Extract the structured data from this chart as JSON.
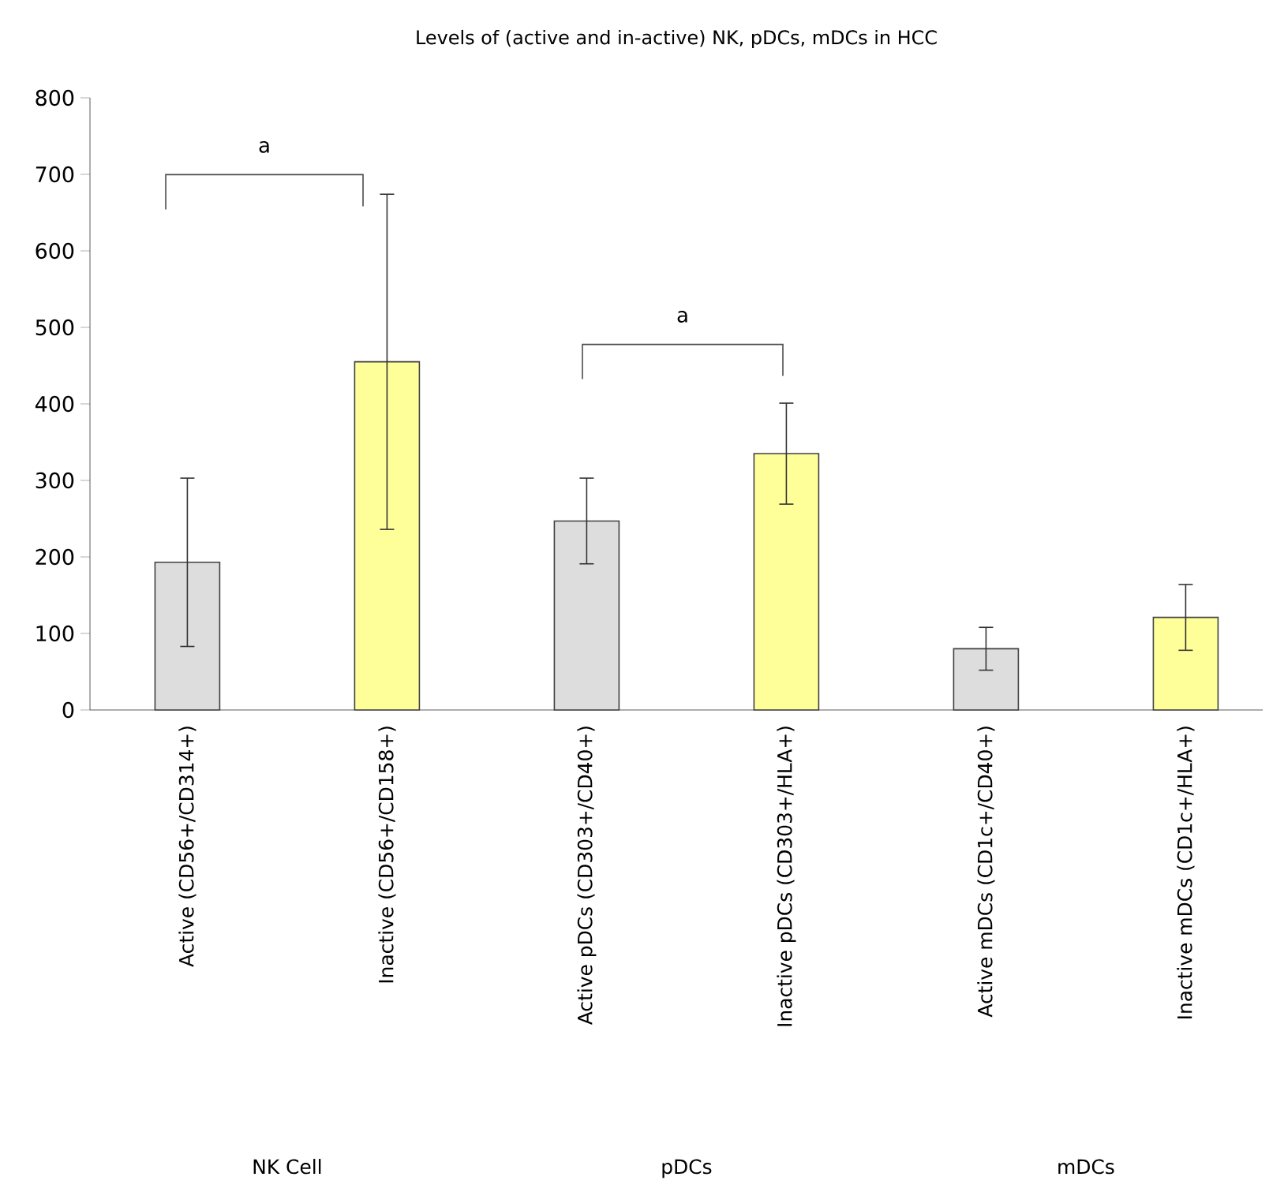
{
  "chart_data": {
    "type": "bar",
    "title": "Levels of (active and in-active) NK, pDCs, mDCs in HCC",
    "categories": [
      "Active (CD56+/CD314+)",
      "Inactive (CD56+/CD158+)",
      "Active pDCs (CD303+/CD40+)",
      "Inactive pDCs (CD303+/HLA+)",
      "Active mDCs (CD1c+/CD40+)",
      "Inactive mDCs (CD1c+/HLA+)"
    ],
    "values": [
      193,
      455,
      247,
      335,
      80,
      121
    ],
    "errors": [
      110,
      219,
      56,
      66,
      28,
      43
    ],
    "colors": [
      "#dcdddc",
      "#ffff99",
      "#dcdddc",
      "#ffff99",
      "#dcdddc",
      "#ffff99"
    ],
    "ylim": [
      0,
      800
    ],
    "yticks": [
      0,
      100,
      200,
      300,
      400,
      500,
      600,
      700,
      800
    ],
    "annotations": [
      "a",
      "a",
      "NK Cell",
      "pDCs",
      "mDCs"
    ]
  }
}
